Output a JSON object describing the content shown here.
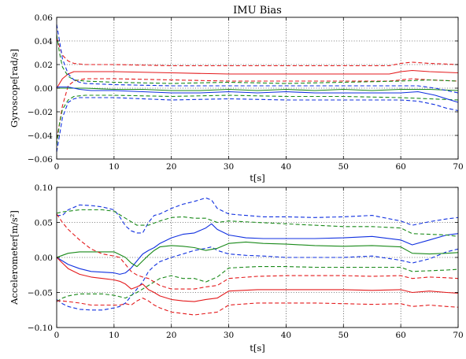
{
  "colors": {
    "red": "#e41a1c",
    "green": "#1a8a1a",
    "blue": "#1030e0"
  },
  "chart_data": [
    {
      "type": "line",
      "title": "IMU Bias",
      "xlabel": "t[s]",
      "ylabel": "Gyroscope[rad/s]",
      "xlim": [
        0,
        70
      ],
      "ylim": [
        -0.06,
        0.06
      ],
      "xticks": [
        0,
        10,
        20,
        30,
        40,
        50,
        60,
        70
      ],
      "xtick_labels": [
        "0",
        "10",
        "20",
        "30",
        "40",
        "50",
        "60",
        "70"
      ],
      "yticks": [
        -0.06,
        -0.04,
        -0.02,
        0.0,
        0.02,
        0.04,
        0.06
      ],
      "ytick_labels": [
        "−0.06",
        "−0.04",
        "−0.02",
        "0.00",
        "0.02",
        "0.04",
        "0.06"
      ],
      "grid": true,
      "series": [
        {
          "color": "red",
          "style": "solid",
          "x": [
            0,
            1,
            2,
            3,
            5,
            10,
            20,
            30,
            40,
            50,
            58,
            60,
            62,
            65,
            70
          ],
          "y": [
            0.0,
            0.008,
            0.012,
            0.014,
            0.014,
            0.014,
            0.013,
            0.012,
            0.012,
            0.012,
            0.012,
            0.014,
            0.015,
            0.014,
            0.013
          ]
        },
        {
          "color": "red",
          "style": "dashed",
          "x": [
            0,
            0.5,
            1,
            2,
            3,
            5,
            10,
            20,
            30,
            40,
            50,
            58,
            60,
            62,
            65,
            70
          ],
          "y": [
            0.043,
            0.035,
            0.028,
            0.023,
            0.021,
            0.02,
            0.02,
            0.019,
            0.019,
            0.019,
            0.019,
            0.019,
            0.021,
            0.022,
            0.021,
            0.02
          ]
        },
        {
          "color": "red",
          "style": "dashed",
          "x": [
            0,
            0.5,
            1,
            2,
            3,
            5,
            10,
            20,
            30,
            40,
            50,
            58,
            60,
            62,
            65,
            70
          ],
          "y": [
            -0.043,
            -0.03,
            -0.015,
            0.002,
            0.006,
            0.008,
            0.008,
            0.007,
            0.006,
            0.006,
            0.006,
            0.006,
            0.007,
            0.008,
            0.007,
            0.006
          ]
        },
        {
          "color": "green",
          "style": "solid",
          "x": [
            0,
            2,
            5,
            10,
            15,
            20,
            25,
            30,
            35,
            40,
            45,
            50,
            55,
            60,
            65,
            70
          ],
          "y": [
            0.0,
            0.0,
            0.0,
            -0.001,
            -0.001,
            -0.002,
            -0.002,
            -0.001,
            -0.002,
            -0.001,
            -0.002,
            -0.001,
            -0.002,
            -0.001,
            -0.001,
            -0.002
          ]
        },
        {
          "color": "green",
          "style": "dashed",
          "x": [
            0,
            0.5,
            1,
            2,
            3,
            5,
            10,
            20,
            30,
            40,
            50,
            60,
            65,
            70
          ],
          "y": [
            0.045,
            0.03,
            0.018,
            0.01,
            0.007,
            0.006,
            0.005,
            0.004,
            0.005,
            0.004,
            0.005,
            0.006,
            0.007,
            0.006
          ]
        },
        {
          "color": "green",
          "style": "dashed",
          "x": [
            0,
            0.5,
            1,
            2,
            3,
            5,
            10,
            20,
            30,
            40,
            50,
            60,
            65,
            70
          ],
          "y": [
            -0.048,
            -0.03,
            -0.018,
            -0.01,
            -0.007,
            -0.006,
            -0.006,
            -0.007,
            -0.006,
            -0.007,
            -0.007,
            -0.008,
            -0.009,
            -0.01
          ]
        },
        {
          "color": "blue",
          "style": "solid",
          "x": [
            0,
            2,
            4,
            6,
            10,
            15,
            20,
            25,
            30,
            35,
            40,
            45,
            50,
            55,
            60,
            63,
            66,
            68,
            70
          ],
          "y": [
            0.001,
            0.001,
            -0.001,
            -0.002,
            -0.002,
            -0.003,
            -0.004,
            -0.004,
            -0.003,
            -0.004,
            -0.003,
            -0.004,
            -0.004,
            -0.004,
            -0.004,
            -0.003,
            -0.006,
            -0.009,
            -0.012
          ]
        },
        {
          "color": "blue",
          "style": "dashed",
          "x": [
            0,
            0.5,
            1,
            2,
            3,
            4,
            5,
            10,
            20,
            30,
            40,
            50,
            60,
            63,
            66,
            68,
            70
          ],
          "y": [
            0.054,
            0.04,
            0.025,
            0.012,
            0.007,
            0.005,
            0.004,
            0.003,
            0.002,
            0.002,
            0.002,
            0.002,
            0.002,
            0.002,
            0.0,
            -0.002,
            -0.004
          ]
        },
        {
          "color": "blue",
          "style": "dashed",
          "x": [
            0,
            0.5,
            1,
            2,
            3,
            4,
            5,
            10,
            20,
            30,
            40,
            50,
            60,
            63,
            66,
            68,
            70
          ],
          "y": [
            -0.054,
            -0.04,
            -0.025,
            -0.012,
            -0.009,
            -0.008,
            -0.008,
            -0.008,
            -0.01,
            -0.009,
            -0.01,
            -0.01,
            -0.01,
            -0.011,
            -0.014,
            -0.017,
            -0.019
          ]
        }
      ]
    },
    {
      "type": "line",
      "xlabel": "t[s]",
      "ylabel": "Accelerometer[m/s²]",
      "xlim": [
        0,
        70
      ],
      "ylim": [
        -0.1,
        0.1
      ],
      "xticks": [
        0,
        10,
        20,
        30,
        40,
        50,
        60,
        70
      ],
      "xtick_labels": [
        "0",
        "10",
        "20",
        "30",
        "40",
        "50",
        "60",
        "70"
      ],
      "yticks": [
        -0.1,
        -0.05,
        0.0,
        0.05,
        0.1
      ],
      "ytick_labels": [
        "−0.10",
        "−0.05",
        "0.00",
        "0.05",
        "0.10"
      ],
      "grid": true,
      "series": [
        {
          "color": "blue",
          "style": "solid",
          "x": [
            0,
            1,
            2,
            4,
            6,
            8,
            10,
            11,
            12,
            13,
            14,
            15,
            16,
            17,
            18,
            20,
            22,
            24,
            26,
            27,
            28,
            30,
            33,
            36,
            40,
            45,
            50,
            55,
            60,
            62,
            65,
            68,
            70
          ],
          "y": [
            0.0,
            -0.005,
            -0.01,
            -0.016,
            -0.02,
            -0.021,
            -0.022,
            -0.024,
            -0.022,
            -0.015,
            -0.005,
            0.005,
            0.01,
            0.014,
            0.02,
            0.028,
            0.033,
            0.035,
            0.042,
            0.048,
            0.04,
            0.032,
            0.028,
            0.027,
            0.027,
            0.027,
            0.028,
            0.03,
            0.025,
            0.018,
            0.025,
            0.032,
            0.034
          ]
        },
        {
          "color": "blue",
          "style": "dashed",
          "x": [
            0,
            1,
            2,
            4,
            6,
            8,
            10,
            11,
            12,
            13,
            14,
            15,
            16,
            17,
            18,
            20,
            22,
            24,
            26,
            27,
            28,
            30,
            33,
            36,
            40,
            45,
            50,
            55,
            60,
            62,
            65,
            68,
            70
          ],
          "y": [
            0.06,
            0.06,
            0.068,
            0.075,
            0.074,
            0.072,
            0.068,
            0.058,
            0.045,
            0.038,
            0.035,
            0.035,
            0.05,
            0.06,
            0.062,
            0.07,
            0.076,
            0.08,
            0.085,
            0.082,
            0.07,
            0.062,
            0.06,
            0.058,
            0.058,
            0.057,
            0.058,
            0.06,
            0.052,
            0.046,
            0.051,
            0.055,
            0.057
          ]
        },
        {
          "color": "blue",
          "style": "dashed",
          "x": [
            0,
            1,
            2,
            4,
            6,
            8,
            10,
            11,
            12,
            13,
            14,
            15,
            16,
            17,
            18,
            20,
            22,
            24,
            26,
            27,
            28,
            30,
            33,
            36,
            40,
            45,
            50,
            55,
            60,
            62,
            65,
            68,
            70
          ],
          "y": [
            -0.06,
            -0.066,
            -0.07,
            -0.074,
            -0.075,
            -0.075,
            -0.072,
            -0.07,
            -0.065,
            -0.055,
            -0.045,
            -0.035,
            -0.02,
            -0.012,
            -0.006,
            0.0,
            0.005,
            0.01,
            0.013,
            0.015,
            0.01,
            0.005,
            0.003,
            0.002,
            0.0,
            0.0,
            0.0,
            0.002,
            -0.004,
            -0.008,
            -0.002,
            0.008,
            0.012
          ]
        },
        {
          "color": "green",
          "style": "solid",
          "x": [
            0,
            1,
            2,
            4,
            6,
            8,
            10,
            11,
            12,
            13,
            14,
            15,
            16,
            17,
            18,
            20,
            22,
            24,
            26,
            28,
            30,
            33,
            36,
            40,
            45,
            50,
            55,
            60,
            62,
            65,
            68,
            70
          ],
          "y": [
            0.0,
            0.003,
            0.006,
            0.008,
            0.008,
            0.008,
            0.008,
            0.004,
            0.0,
            -0.008,
            -0.013,
            -0.005,
            0.003,
            0.01,
            0.015,
            0.017,
            0.016,
            0.014,
            0.01,
            0.013,
            0.02,
            0.022,
            0.02,
            0.019,
            0.017,
            0.016,
            0.017,
            0.015,
            0.006,
            0.005,
            0.006,
            0.007
          ]
        },
        {
          "color": "green",
          "style": "dashed",
          "x": [
            0,
            1,
            2,
            4,
            6,
            8,
            10,
            12,
            14,
            16,
            18,
            20,
            22,
            24,
            26,
            28,
            30,
            35,
            40,
            45,
            50,
            55,
            60,
            62,
            65,
            68,
            70
          ],
          "y": [
            0.063,
            0.065,
            0.066,
            0.068,
            0.068,
            0.068,
            0.066,
            0.056,
            0.046,
            0.046,
            0.052,
            0.057,
            0.058,
            0.056,
            0.056,
            0.05,
            0.052,
            0.05,
            0.048,
            0.046,
            0.044,
            0.044,
            0.042,
            0.034,
            0.033,
            0.032,
            0.03
          ]
        },
        {
          "color": "green",
          "style": "dashed",
          "x": [
            0,
            1,
            2,
            4,
            6,
            8,
            10,
            12,
            14,
            16,
            18,
            20,
            22,
            24,
            26,
            28,
            30,
            35,
            40,
            45,
            50,
            55,
            60,
            62,
            65,
            68,
            70
          ],
          "y": [
            -0.063,
            -0.058,
            -0.055,
            -0.052,
            -0.052,
            -0.052,
            -0.054,
            -0.058,
            -0.05,
            -0.04,
            -0.03,
            -0.026,
            -0.03,
            -0.03,
            -0.035,
            -0.028,
            -0.015,
            -0.013,
            -0.013,
            -0.014,
            -0.014,
            -0.014,
            -0.014,
            -0.02,
            -0.019,
            -0.018,
            -0.017
          ]
        },
        {
          "color": "red",
          "style": "solid",
          "x": [
            0,
            1,
            2,
            4,
            6,
            8,
            10,
            11,
            12,
            13,
            14,
            15,
            16,
            17,
            18,
            20,
            22,
            24,
            26,
            28,
            30,
            35,
            40,
            45,
            50,
            55,
            60,
            62,
            65,
            68,
            70
          ],
          "y": [
            0.0,
            -0.008,
            -0.016,
            -0.024,
            -0.028,
            -0.03,
            -0.032,
            -0.034,
            -0.038,
            -0.045,
            -0.042,
            -0.038,
            -0.046,
            -0.05,
            -0.055,
            -0.06,
            -0.062,
            -0.063,
            -0.06,
            -0.058,
            -0.048,
            -0.046,
            -0.046,
            -0.046,
            -0.046,
            -0.047,
            -0.046,
            -0.05,
            -0.048,
            -0.05,
            -0.051
          ]
        },
        {
          "color": "red",
          "style": "dashed",
          "x": [
            0,
            1,
            2,
            4,
            6,
            8,
            10,
            11,
            12,
            13,
            14,
            15,
            16,
            17,
            18,
            20,
            22,
            24,
            26,
            28,
            30,
            35,
            40,
            45,
            50,
            55,
            60,
            62,
            65,
            68,
            70
          ],
          "y": [
            0.062,
            0.05,
            0.04,
            0.025,
            0.012,
            0.005,
            0.002,
            0.0,
            -0.01,
            -0.02,
            -0.025,
            -0.028,
            -0.03,
            -0.035,
            -0.04,
            -0.045,
            -0.045,
            -0.045,
            -0.042,
            -0.04,
            -0.03,
            -0.027,
            -0.026,
            -0.026,
            -0.026,
            -0.027,
            -0.026,
            -0.03,
            -0.028,
            -0.029,
            -0.03
          ]
        },
        {
          "color": "red",
          "style": "dashed",
          "x": [
            0,
            1,
            2,
            4,
            6,
            8,
            10,
            11,
            12,
            13,
            14,
            15,
            16,
            17,
            18,
            20,
            22,
            24,
            26,
            28,
            30,
            35,
            40,
            45,
            50,
            55,
            60,
            62,
            65,
            68,
            70
          ],
          "y": [
            -0.062,
            -0.062,
            -0.063,
            -0.065,
            -0.068,
            -0.068,
            -0.068,
            -0.068,
            -0.066,
            -0.068,
            -0.062,
            -0.058,
            -0.062,
            -0.068,
            -0.072,
            -0.078,
            -0.08,
            -0.082,
            -0.08,
            -0.078,
            -0.068,
            -0.065,
            -0.065,
            -0.065,
            -0.066,
            -0.067,
            -0.066,
            -0.07,
            -0.068,
            -0.07,
            -0.071
          ]
        }
      ]
    }
  ]
}
